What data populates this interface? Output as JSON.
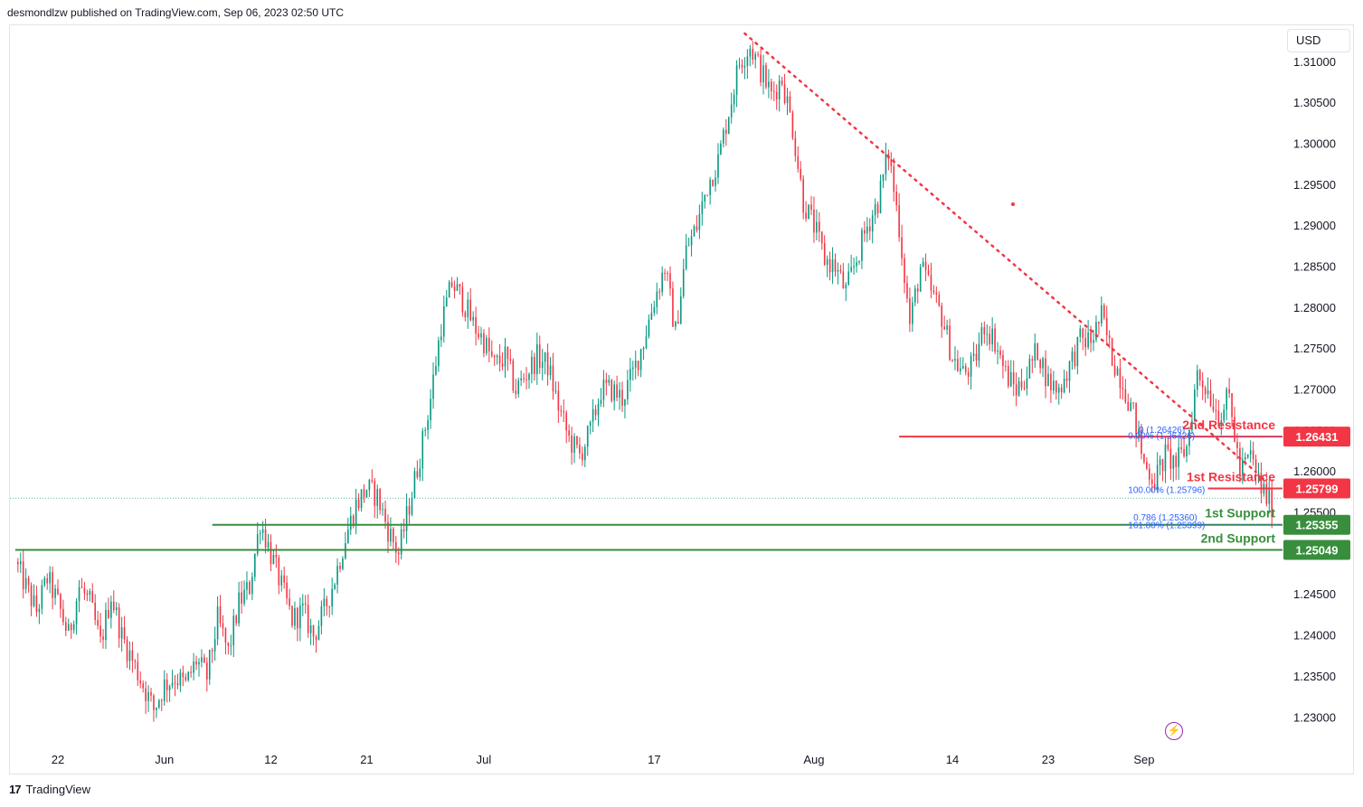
{
  "header": {
    "published": "desmondlzw published on TradingView.com, Sep 06, 2023 02:50 UTC"
  },
  "toolbar": {
    "currency": "USD"
  },
  "footer": {
    "brand": "TradingView",
    "logo_glyph": "17"
  },
  "chart_data": {
    "type": "candlestick",
    "symbol_currency": "USD",
    "y_ticks": [
      "1.31000",
      "1.30500",
      "1.30000",
      "1.29500",
      "1.29000",
      "1.28500",
      "1.28000",
      "1.27500",
      "1.27000",
      "1.26500",
      "1.26000",
      "1.25500",
      "1.24500",
      "1.24000",
      "1.23500",
      "1.23000"
    ],
    "ylim": [
      1.2265,
      1.3145
    ],
    "x_ticks": [
      {
        "label": "22",
        "day": 22
      },
      {
        "label": "Jun",
        "day": 32
      },
      {
        "label": "12",
        "day": 42
      },
      {
        "label": "21",
        "day": 51
      },
      {
        "label": "Jul",
        "day": 62
      },
      {
        "label": "17",
        "day": 78
      },
      {
        "label": "Aug",
        "day": 93
      },
      {
        "label": "14",
        "day": 106
      },
      {
        "label": "23",
        "day": 115
      },
      {
        "label": "Sep",
        "day": 124
      }
    ],
    "xlim": [
      17.5,
      137.0
    ],
    "colors": {
      "up": "#089981",
      "down": "#f23645",
      "resistance": "#f23645",
      "support": "#388e3c",
      "fib": "#2962ff"
    },
    "path": [
      [
        18,
        1.249
      ],
      [
        20,
        1.243
      ],
      [
        21,
        1.247
      ],
      [
        22,
        1.244
      ],
      [
        23,
        1.24
      ],
      [
        24,
        1.246
      ],
      [
        25,
        1.244
      ],
      [
        26,
        1.239
      ],
      [
        27,
        1.245
      ],
      [
        28,
        1.24
      ],
      [
        29,
        1.237
      ],
      [
        30,
        1.234
      ],
      [
        31,
        1.231
      ],
      [
        32,
        1.234
      ],
      [
        33,
        1.235
      ],
      [
        34,
        1.234
      ],
      [
        35,
        1.237
      ],
      [
        36,
        1.235
      ],
      [
        37,
        1.242
      ],
      [
        38,
        1.238
      ],
      [
        39,
        1.244
      ],
      [
        40,
        1.246
      ],
      [
        41,
        1.254
      ],
      [
        42,
        1.25
      ],
      [
        43,
        1.246
      ],
      [
        44,
        1.242
      ],
      [
        45,
        1.243
      ],
      [
        46,
        1.24
      ],
      [
        47,
        1.243
      ],
      [
        48,
        1.247
      ],
      [
        49,
        1.252
      ],
      [
        50,
        1.256
      ],
      [
        51,
        1.258
      ],
      [
        52,
        1.257
      ],
      [
        53,
        1.253
      ],
      [
        54,
        1.25
      ],
      [
        55,
        1.256
      ],
      [
        56,
        1.262
      ],
      [
        57,
        1.269
      ],
      [
        58,
        1.278
      ],
      [
        59,
        1.283
      ],
      [
        60,
        1.281
      ],
      [
        61,
        1.278
      ],
      [
        62,
        1.276
      ],
      [
        63,
        1.273
      ],
      [
        64,
        1.274
      ],
      [
        65,
        1.27
      ],
      [
        66,
        1.272
      ],
      [
        67,
        1.274
      ],
      [
        68,
        1.273
      ],
      [
        69,
        1.268
      ],
      [
        70,
        1.264
      ],
      [
        71,
        1.262
      ],
      [
        72,
        1.265
      ],
      [
        73,
        1.27
      ],
      [
        74,
        1.27
      ],
      [
        75,
        1.269
      ],
      [
        76,
        1.272
      ],
      [
        77,
        1.276
      ],
      [
        78,
        1.281
      ],
      [
        79,
        1.285
      ],
      [
        80,
        1.277
      ],
      [
        81,
        1.287
      ],
      [
        82,
        1.29
      ],
      [
        83,
        1.295
      ],
      [
        84,
        1.298
      ],
      [
        85,
        1.304
      ],
      [
        86,
        1.31
      ],
      [
        87,
        1.312
      ],
      [
        88,
        1.309
      ],
      [
        89,
        1.306
      ],
      [
        90,
        1.308
      ],
      [
        91,
        1.302
      ],
      [
        92,
        1.293
      ],
      [
        93,
        1.29
      ],
      [
        94,
        1.286
      ],
      [
        95,
        1.285
      ],
      [
        96,
        1.282
      ],
      [
        97,
        1.286
      ],
      [
        98,
        1.29
      ],
      [
        99,
        1.293
      ],
      [
        100,
        1.299
      ],
      [
        101,
        1.29
      ],
      [
        102,
        1.278
      ],
      [
        103,
        1.285
      ],
      [
        104,
        1.282
      ],
      [
        105,
        1.279
      ],
      [
        106,
        1.274
      ],
      [
        107,
        1.272
      ],
      [
        108,
        1.273
      ],
      [
        109,
        1.278
      ],
      [
        110,
        1.276
      ],
      [
        111,
        1.272
      ],
      [
        112,
        1.27
      ],
      [
        113,
        1.272
      ],
      [
        114,
        1.275
      ],
      [
        115,
        1.271
      ],
      [
        116,
        1.27
      ],
      [
        117,
        1.273
      ],
      [
        118,
        1.276
      ],
      [
        119,
        1.276
      ],
      [
        120,
        1.279
      ],
      [
        121,
        1.274
      ],
      [
        122,
        1.271
      ],
      [
        123,
        1.267
      ],
      [
        124,
        1.261
      ],
      [
        125,
        1.259
      ],
      [
        126,
        1.262
      ],
      [
        127,
        1.261
      ],
      [
        128,
        1.263
      ],
      [
        129,
        1.272
      ],
      [
        130,
        1.27
      ],
      [
        131,
        1.267
      ],
      [
        132,
        1.269
      ],
      [
        133,
        1.26
      ],
      [
        134,
        1.262
      ],
      [
        135,
        1.258
      ],
      [
        136,
        1.256
      ]
    ],
    "levels": [
      {
        "kind": "resistance",
        "label": "2nd Resistance",
        "value": 1.26431,
        "price_label": "1.26431",
        "from_day": 101
      },
      {
        "kind": "resistance",
        "label": "1st Resistance",
        "value": 1.25799,
        "price_label": "1.25799",
        "from_day": 130
      },
      {
        "kind": "support",
        "label": "1st Support",
        "value": 1.25355,
        "price_label": "1.25355",
        "from_day": 36.5
      },
      {
        "kind": "support",
        "label": "2nd Support",
        "value": 1.25049,
        "price_label": "1.25049",
        "from_day": 18
      }
    ],
    "trendline": {
      "from": [
        86.5,
        1.3135
      ],
      "to": [
        134.5,
        1.26
      ]
    },
    "fib_labels": [
      {
        "text": "0 (1.26426)",
        "day": 123.5,
        "value": 1.2652
      },
      {
        "text": "0.00% (1.26426)",
        "day": 122.5,
        "value": 1.2645
      },
      {
        "text": "100.00% (1.25796)",
        "day": 122.5,
        "value": 1.2579
      },
      {
        "text": "0.786 (1.25360)",
        "day": 123.0,
        "value": 1.2545
      },
      {
        "text": "161.80% (1.25399)",
        "day": 122.5,
        "value": 1.2536
      }
    ],
    "last_price": 1.2568
  }
}
